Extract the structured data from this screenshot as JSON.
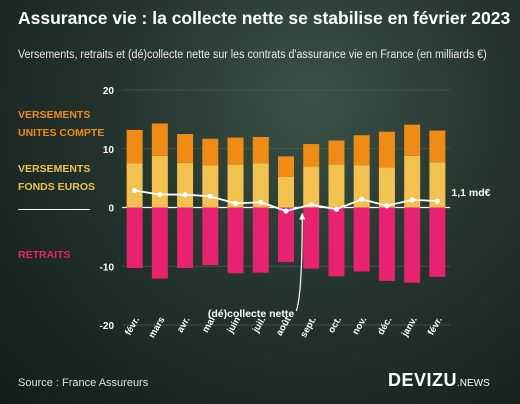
{
  "title": "Assurance vie : la collecte nette se stabilise en février 2023",
  "subtitle": "Versements, retraits et (dé)collecte nette sur les contrats d'assurance vie en France (en milliards €)",
  "legend": {
    "uc_line1": "VERSEMENTS",
    "uc_line2": "UNITES COMPTE",
    "fe_line1": "VERSEMENTS",
    "fe_line2": "FONDS EUROS",
    "retraits": "RETRAITS"
  },
  "annotation": {
    "net_label": "(dé)collecte nette",
    "last_value_label": "1,1 md€"
  },
  "source": "Source : France Assureurs",
  "brand": {
    "name": "DEVIZU",
    "suffix": ".NEWS"
  },
  "colors": {
    "uc": "#f08c14",
    "fonds_euros": "#f2c14e",
    "retraits": "#e8226e",
    "net_line": "#ffffff"
  },
  "chart_data": {
    "type": "bar",
    "stacked": true,
    "categories": [
      "févr.",
      "mars",
      "avr.",
      "mai",
      "juin",
      "juil.",
      "août",
      "sept.",
      "oct.",
      "nov.",
      "déc.",
      "janv.",
      "févr."
    ],
    "series": [
      {
        "name": "VERSEMENTS FONDS EUROS",
        "values": [
          7.5,
          8.8,
          7.6,
          7.2,
          7.3,
          7.5,
          5.2,
          7.0,
          7.3,
          7.2,
          6.8,
          8.8,
          7.7
        ]
      },
      {
        "name": "VERSEMENTS UNITES COMPTE",
        "values": [
          5.7,
          5.5,
          4.9,
          4.5,
          4.6,
          4.5,
          3.5,
          3.8,
          4.1,
          5.1,
          6.1,
          5.3,
          5.4
        ]
      },
      {
        "name": "RETRAITS",
        "values": [
          -10.3,
          -12.1,
          -10.3,
          -9.8,
          -11.2,
          -11.1,
          -9.3,
          -10.4,
          -11.7,
          -10.9,
          -12.5,
          -12.8,
          -11.8
        ]
      },
      {
        "name": "(dé)collecte nette",
        "type": "line",
        "values": [
          2.9,
          2.2,
          2.2,
          1.9,
          0.7,
          0.9,
          -0.6,
          0.5,
          -0.3,
          1.4,
          0.3,
          1.3,
          1.1
        ]
      }
    ],
    "ylim": [
      -20,
      20
    ],
    "yticks": [
      -20,
      -10,
      0,
      10,
      20
    ],
    "ytick_labels": [
      "-20",
      "-10",
      "0",
      "10",
      "20"
    ],
    "grid": true
  }
}
